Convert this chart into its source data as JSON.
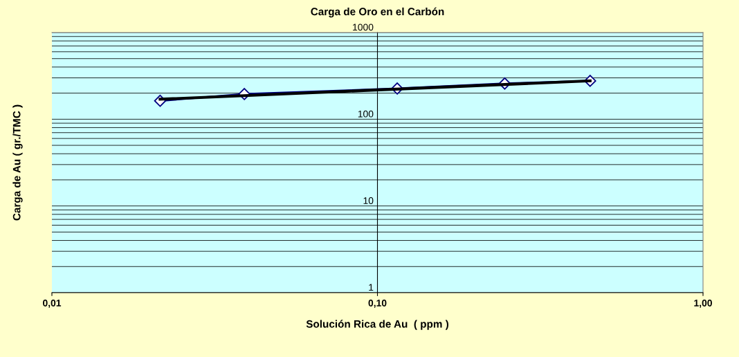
{
  "chart_data": {
    "type": "line",
    "title": "Carga de Oro en el Carbón",
    "xlabel": "Solución Rica de Au  ( ppm )",
    "ylabel": "Carga de Au ( gr./TMC )",
    "log": "xy",
    "xlim": [
      0.01,
      1
    ],
    "ylim": [
      1,
      1000
    ],
    "xticks": [
      {
        "value": 0.01,
        "label": "0,01"
      },
      {
        "value": 0.1,
        "label": "0,10"
      },
      {
        "value": 1,
        "label": "1,00"
      }
    ],
    "yticks": [
      1,
      10,
      100,
      1000
    ],
    "grid": "y",
    "legend": false,
    "series": [
      {
        "color": "#000080",
        "x": [
          0.0215,
          0.039,
          0.115,
          0.246,
          0.45
        ],
        "values": [
          163,
          195,
          226,
          258,
          277
        ],
        "marker": "diamond"
      },
      {
        "color": "#000000",
        "x": [
          0.0215,
          0.45
        ],
        "values": [
          170,
          277
        ],
        "marker": "none"
      }
    ]
  }
}
